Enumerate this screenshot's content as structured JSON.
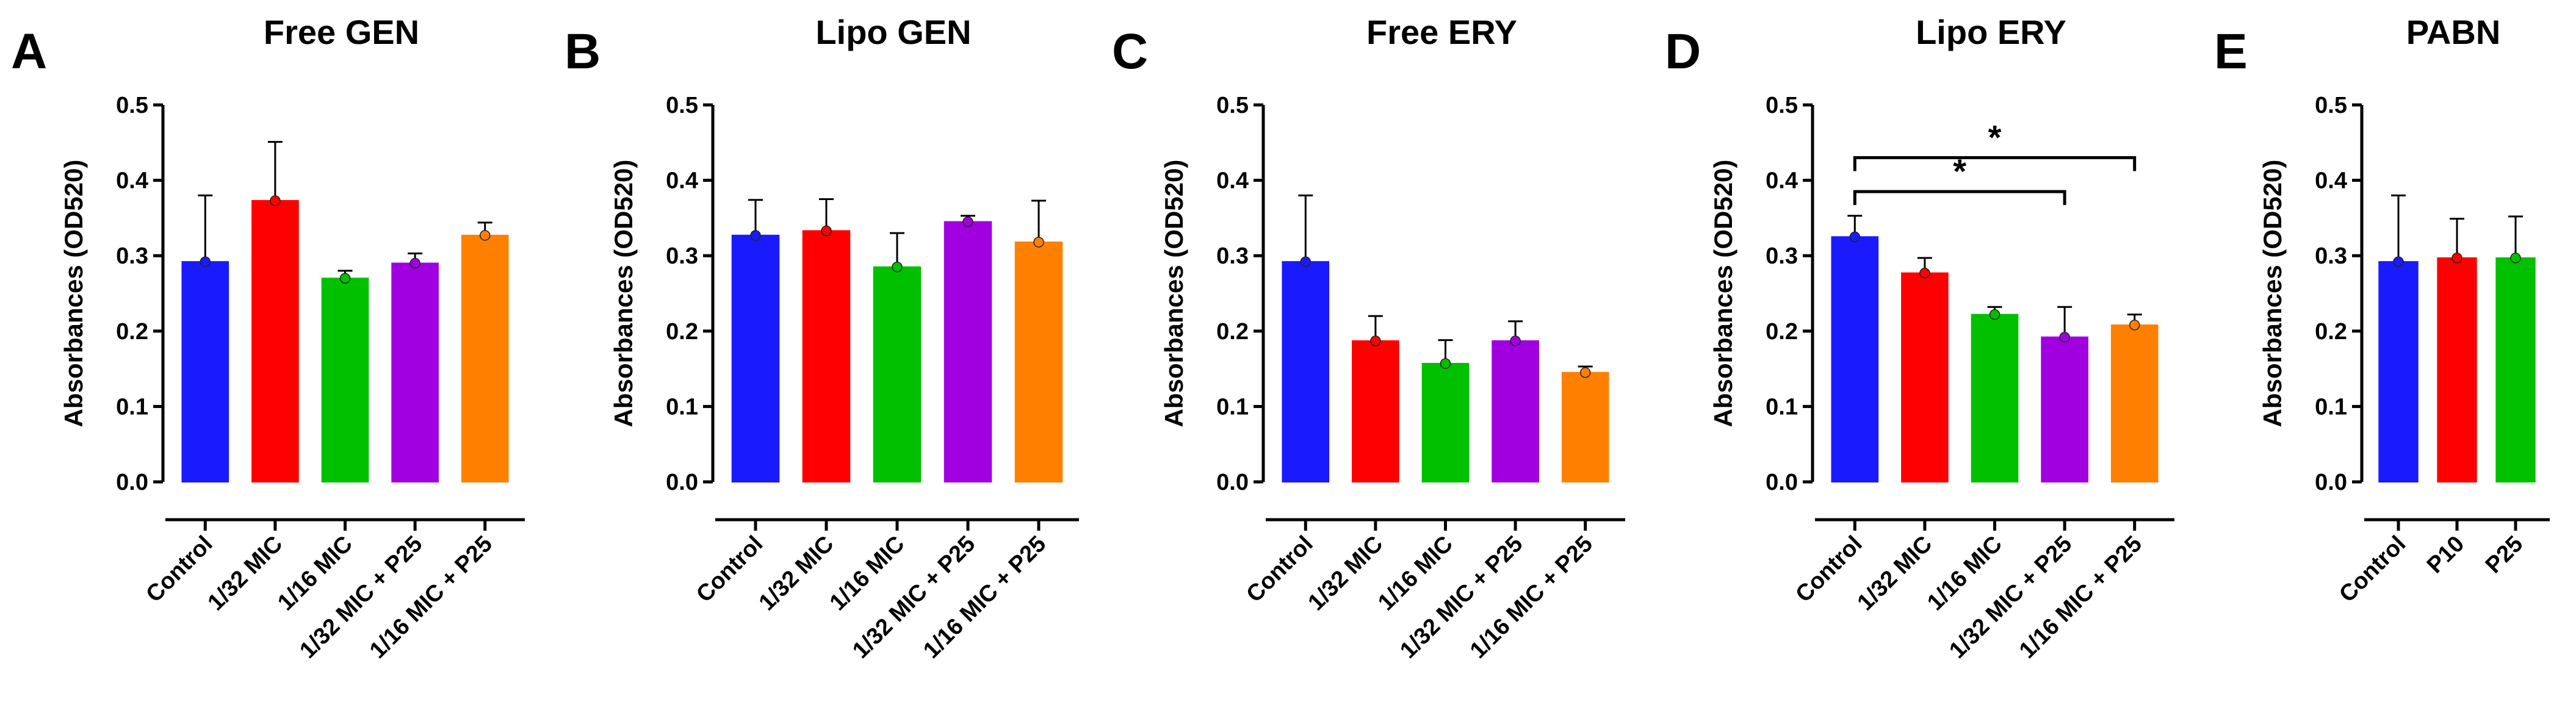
{
  "chart_data": [
    {
      "type": "bar",
      "letter": "A",
      "title": "Free GEN",
      "ylabel": "Absorbances (OD520)",
      "xlabel": "",
      "ylim": [
        0,
        0.5
      ],
      "yticks": [
        "0.0",
        "0.1",
        "0.2",
        "0.3",
        "0.4",
        "0.5"
      ],
      "categories": [
        "Control",
        "1/32 MIC",
        "1/16 MIC",
        "1/32 MIC + P25",
        "1/16 MIC + P25"
      ],
      "values": [
        0.292,
        0.373,
        0.27,
        0.29,
        0.327
      ],
      "errors": [
        0.088,
        0.078,
        0.01,
        0.013,
        0.017
      ],
      "colors": [
        "#1a1aff",
        "#ff0000",
        "#00c000",
        "#a000e0",
        "#ff8000"
      ],
      "significance": []
    },
    {
      "type": "bar",
      "letter": "B",
      "title": "Lipo GEN",
      "ylabel": "Absorbances (OD520)",
      "xlabel": "",
      "ylim": [
        0,
        0.5
      ],
      "yticks": [
        "0.0",
        "0.1",
        "0.2",
        "0.3",
        "0.4",
        "0.5"
      ],
      "categories": [
        "Control",
        "1/32 MIC",
        "1/16 MIC",
        "1/32 MIC + P25",
        "1/16 MIC + P25"
      ],
      "values": [
        0.327,
        0.333,
        0.285,
        0.345,
        0.318
      ],
      "errors": [
        0.047,
        0.042,
        0.045,
        0.008,
        0.055
      ],
      "colors": [
        "#1a1aff",
        "#ff0000",
        "#00c000",
        "#a000e0",
        "#ff8000"
      ],
      "significance": []
    },
    {
      "type": "bar",
      "letter": "C",
      "title": "Free ERY",
      "ylabel": "Absorbances (OD520)",
      "xlabel": "",
      "ylim": [
        0,
        0.5
      ],
      "yticks": [
        "0.0",
        "0.1",
        "0.2",
        "0.3",
        "0.4",
        "0.5"
      ],
      "categories": [
        "Control",
        "1/32 MIC",
        "1/16 MIC",
        "1/32 MIC + P25",
        "1/16 MIC + P25"
      ],
      "values": [
        0.292,
        0.187,
        0.157,
        0.187,
        0.145
      ],
      "errors": [
        0.088,
        0.033,
        0.031,
        0.026,
        0.008
      ],
      "colors": [
        "#1a1aff",
        "#ff0000",
        "#00c000",
        "#a000e0",
        "#ff8000"
      ],
      "significance": []
    },
    {
      "type": "bar",
      "letter": "D",
      "title": "Lipo ERY",
      "ylabel": "Absorbances (OD520)",
      "xlabel": "",
      "ylim": [
        0,
        0.5
      ],
      "yticks": [
        "0.0",
        "0.1",
        "0.2",
        "0.3",
        "0.4",
        "0.5"
      ],
      "categories": [
        "Control",
        "1/32 MIC",
        "1/16 MIC",
        "1/32 MIC + P25",
        "1/16 MIC + P25"
      ],
      "values": [
        0.325,
        0.277,
        0.222,
        0.192,
        0.208
      ],
      "errors": [
        0.028,
        0.02,
        0.01,
        0.04,
        0.014
      ],
      "colors": [
        "#1a1aff",
        "#ff0000",
        "#00c000",
        "#a000e0",
        "#ff8000"
      ],
      "significance": [
        {
          "from": "Control",
          "to": "1/16 MIC + P25",
          "label": "*",
          "level": 0.43
        },
        {
          "from": "Control",
          "to": "1/32 MIC + P25",
          "label": "*",
          "level": 0.385
        }
      ]
    },
    {
      "type": "bar",
      "letter": "E",
      "title": "PABN",
      "ylabel": "Absorbances (OD520)",
      "xlabel": "",
      "ylim": [
        0,
        0.5
      ],
      "yticks": [
        "0.0",
        "0.1",
        "0.2",
        "0.3",
        "0.4",
        "0.5"
      ],
      "categories": [
        "Control",
        "P10",
        "P25"
      ],
      "values": [
        0.292,
        0.297,
        0.297
      ],
      "errors": [
        0.088,
        0.052,
        0.055
      ],
      "colors": [
        "#1a1aff",
        "#ff0000",
        "#00c000"
      ],
      "significance": []
    }
  ]
}
